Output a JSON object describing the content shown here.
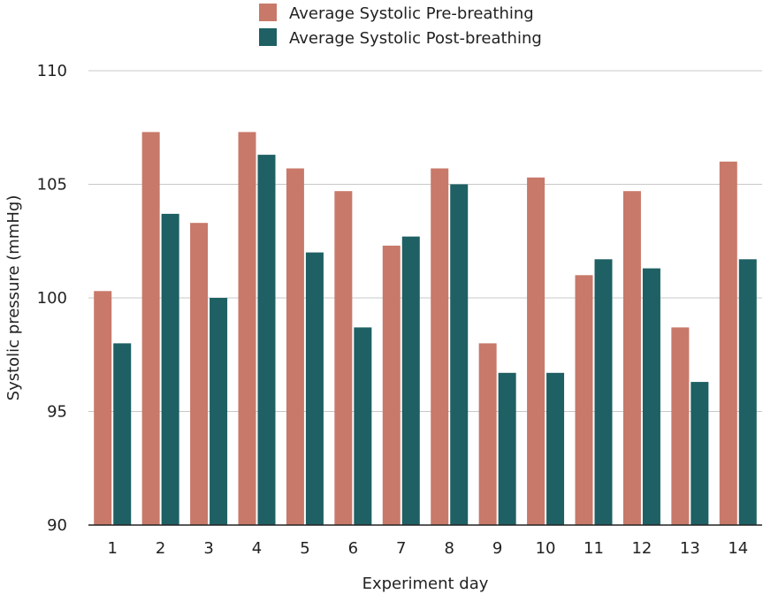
{
  "chart_data": {
    "type": "bar",
    "title": "",
    "xlabel": "Experiment day",
    "ylabel": "Systolic pressure (mmHg)",
    "ylim": [
      90,
      110
    ],
    "yticks": [
      90,
      95,
      100,
      105,
      110
    ],
    "grid": true,
    "legend_position": "top-center",
    "categories": [
      "1",
      "2",
      "3",
      "4",
      "5",
      "6",
      "7",
      "8",
      "9",
      "10",
      "11",
      "12",
      "13",
      "14"
    ],
    "series": [
      {
        "name": "Average Systolic Pre-breathing",
        "color": "#c8796a",
        "values": [
          100.3,
          107.3,
          103.3,
          107.3,
          105.7,
          104.7,
          102.3,
          105.7,
          98.0,
          105.3,
          101.0,
          104.7,
          98.7,
          106.0
        ]
      },
      {
        "name": "Average Systolic Post-breathing",
        "color": "#1e6063",
        "values": [
          98.0,
          103.7,
          100.0,
          106.3,
          102.0,
          98.7,
          102.7,
          105.0,
          96.7,
          96.7,
          101.7,
          101.3,
          96.3,
          101.7
        ]
      }
    ]
  }
}
